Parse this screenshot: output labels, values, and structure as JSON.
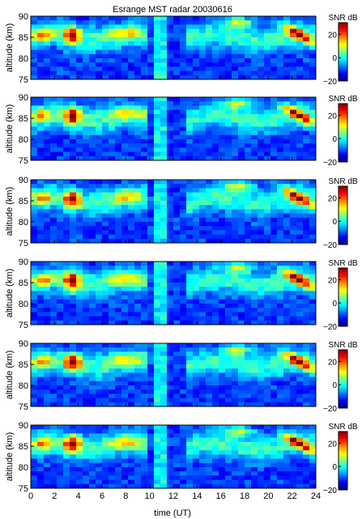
{
  "chart_data": {
    "type": "heatmap",
    "title": "Esrange MST radar 20030616",
    "xlabel": "time (UT)",
    "ylabel": "altitude (km)",
    "xlim": [
      0,
      24
    ],
    "ylim": [
      75,
      90
    ],
    "x_ticks": [
      "0",
      "2",
      "4",
      "6",
      "8",
      "10",
      "12",
      "14",
      "16",
      "18",
      "20",
      "22",
      "24"
    ],
    "y_ticks": [
      "75",
      "80",
      "85",
      "90"
    ],
    "colorbar": {
      "label": "SNR dB",
      "range": [
        -20,
        30
      ],
      "ticks": [
        "20",
        "0",
        "−20"
      ]
    },
    "panel_count": 6,
    "colormap": "jet"
  }
}
